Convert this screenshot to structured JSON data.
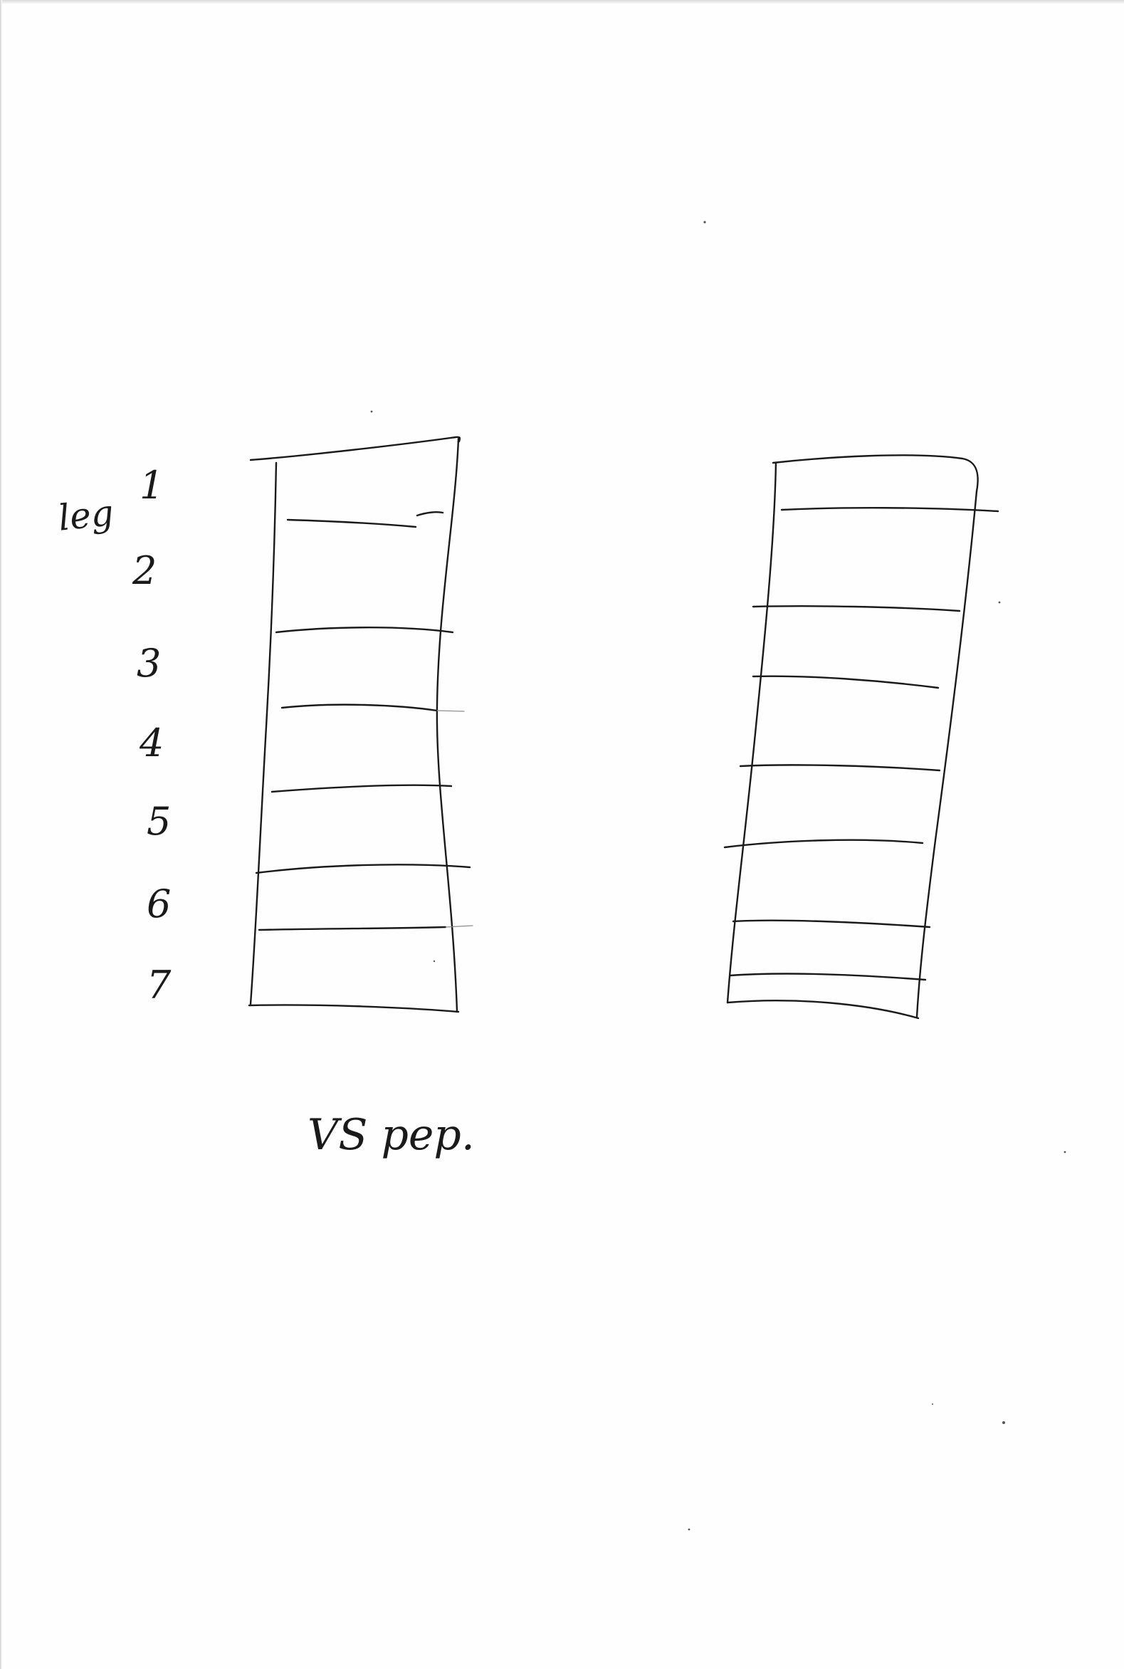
{
  "sheet": {
    "side_label": "leg",
    "row_numbers": [
      "1",
      "2",
      "3",
      "4",
      "5",
      "6",
      "7"
    ],
    "caption": "VS pep."
  },
  "colors": {
    "paper": "#fefefe",
    "ink": "#1a1a1a"
  }
}
